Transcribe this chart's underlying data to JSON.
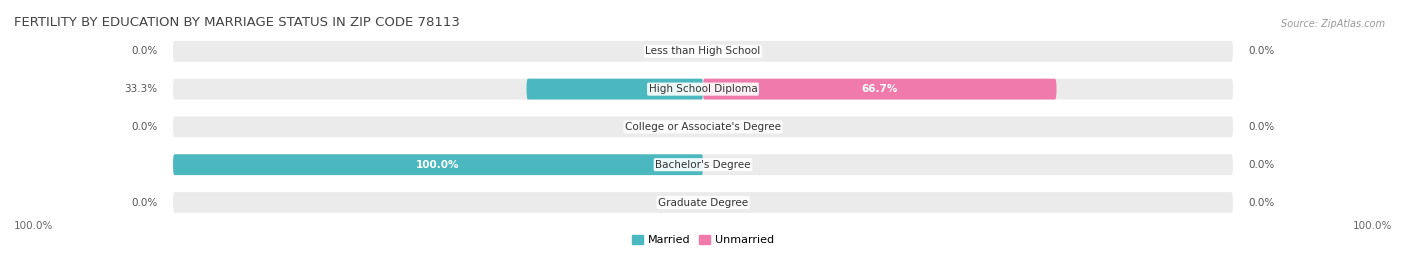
{
  "title": "FERTILITY BY EDUCATION BY MARRIAGE STATUS IN ZIP CODE 78113",
  "source": "Source: ZipAtlas.com",
  "categories": [
    "Less than High School",
    "High School Diploma",
    "College or Associate's Degree",
    "Bachelor's Degree",
    "Graduate Degree"
  ],
  "married_values": [
    0.0,
    33.3,
    0.0,
    100.0,
    0.0
  ],
  "unmarried_values": [
    0.0,
    66.7,
    0.0,
    0.0,
    0.0
  ],
  "married_color": "#4ab8be",
  "unmarried_color": "#f07aaa",
  "background_row_color": "#ebebeb",
  "max_value": 100.0,
  "bottom_left_label": "100.0%",
  "bottom_right_label": "100.0%",
  "title_fontsize": 9.5,
  "source_fontsize": 7,
  "label_fontsize": 7.5,
  "category_fontsize": 7.5,
  "legend_fontsize": 8,
  "bar_height": 0.55,
  "figsize": [
    14.06,
    2.7
  ],
  "dpi": 100
}
